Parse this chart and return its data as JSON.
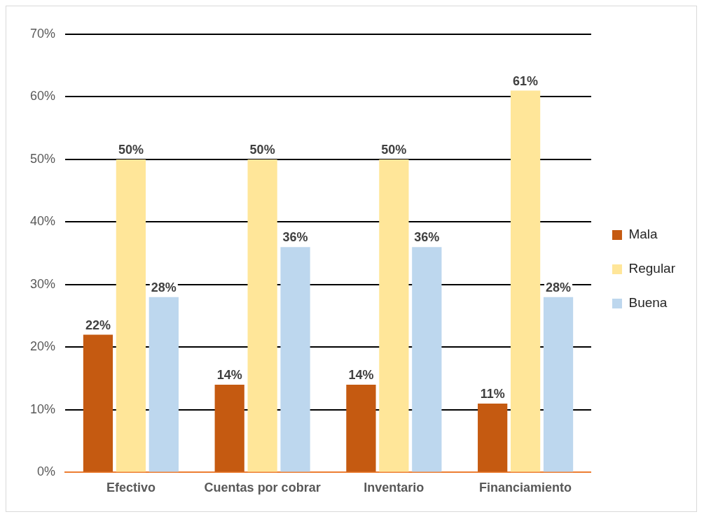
{
  "chart_data": {
    "type": "bar",
    "categories": [
      "Efectivo",
      "Cuentas por cobrar",
      "Inventario",
      "Financiamiento"
    ],
    "series": [
      {
        "name": "Mala",
        "color": "#c55a11",
        "values": [
          22,
          14,
          14,
          11
        ],
        "value_labels": [
          "22%",
          "14%",
          "14%",
          "11%"
        ]
      },
      {
        "name": "Regular",
        "color": "#ffe699",
        "values": [
          50,
          50,
          50,
          61
        ],
        "value_labels": [
          "50%",
          "50%",
          "50%",
          "61%"
        ]
      },
      {
        "name": "Buena",
        "color": "#bdd7ee",
        "values": [
          28,
          36,
          36,
          28
        ],
        "value_labels": [
          "28%",
          "36%",
          "36%",
          "28%"
        ]
      }
    ],
    "ylim": [
      0,
      70
    ],
    "yticks": [
      {
        "value": 0,
        "label": "0%"
      },
      {
        "value": 10,
        "label": "10%"
      },
      {
        "value": 20,
        "label": "20%"
      },
      {
        "value": 30,
        "label": "30%"
      },
      {
        "value": 40,
        "label": "40%"
      },
      {
        "value": 50,
        "label": "50%"
      },
      {
        "value": 60,
        "label": "60%"
      },
      {
        "value": 70,
        "label": "70%"
      }
    ],
    "grid": "y",
    "legend": "right"
  }
}
